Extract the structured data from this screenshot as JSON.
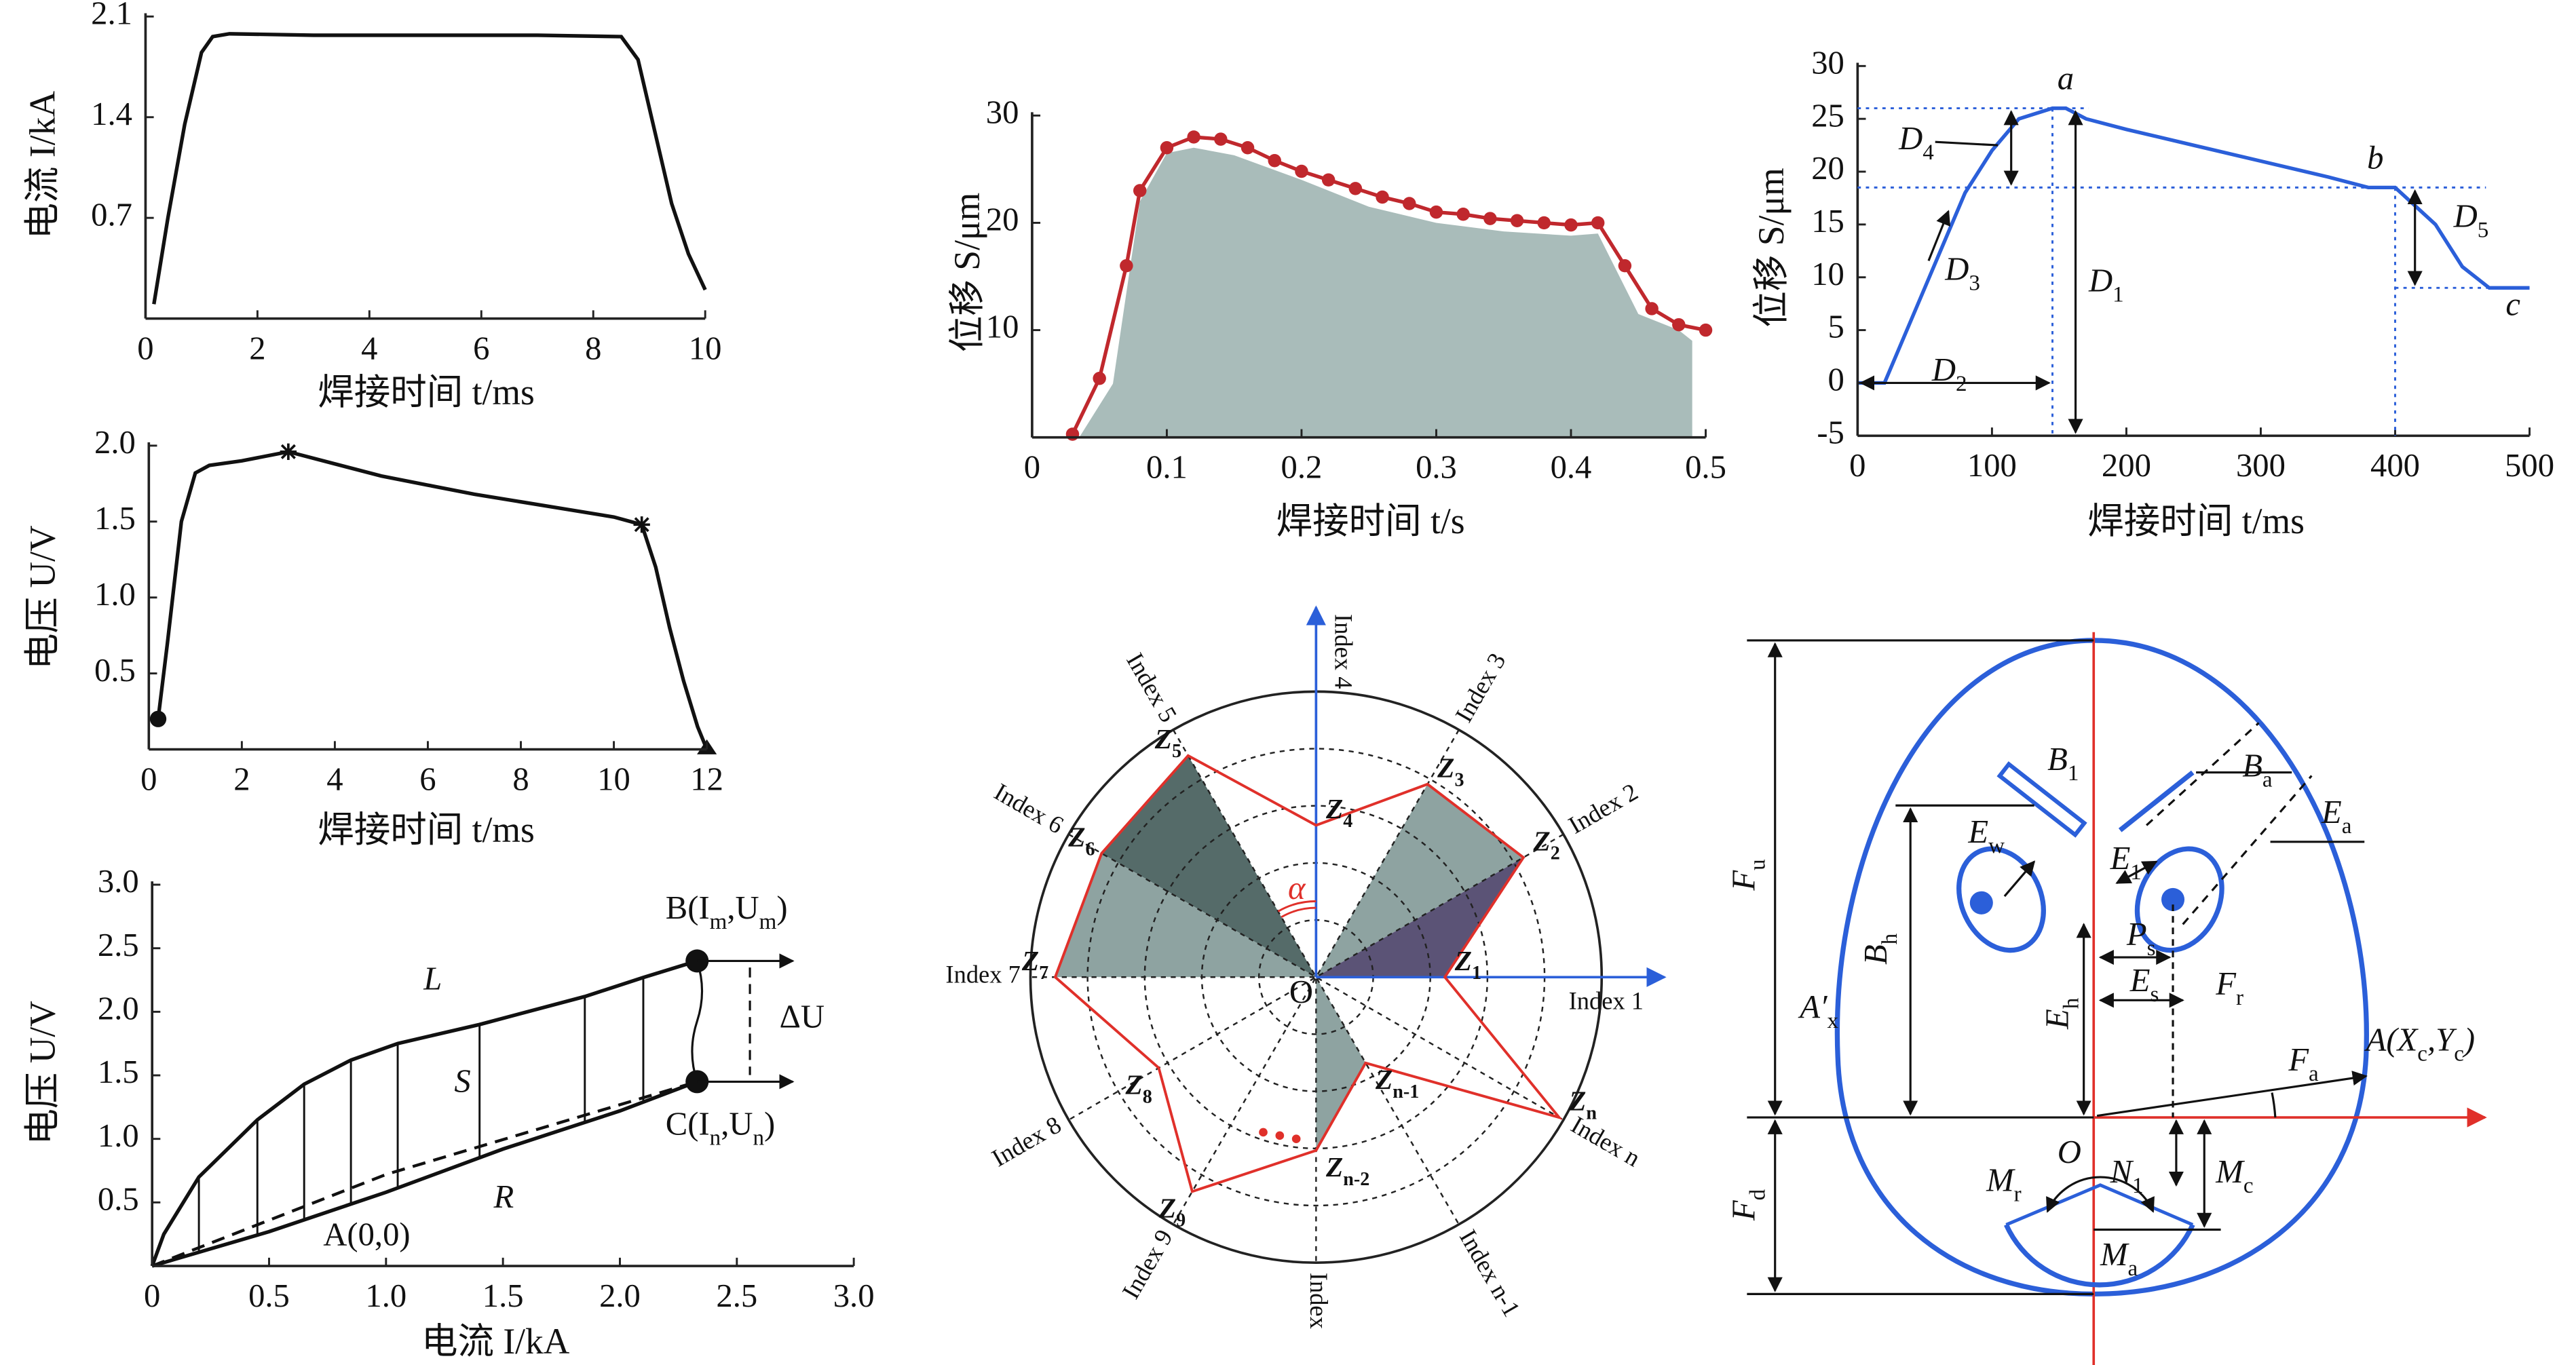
{
  "chart_data": [
    {
      "type": "line",
      "x_label": "焊接时间 t/ms",
      "y_label": "电流 I/kA",
      "xlim": [
        0,
        10
      ],
      "xticks": [
        0,
        2,
        4,
        6,
        8,
        10
      ],
      "ylim": [
        0,
        2.1
      ],
      "yticks": [
        0.7,
        1.4,
        2.1
      ],
      "series": [
        {
          "color": "#111",
          "x": [
            0.15,
            0.4,
            0.7,
            1.0,
            1.2,
            1.5,
            3,
            5,
            7,
            8.5,
            8.8,
            9.1,
            9.4,
            9.7,
            10
          ],
          "values": [
            0.1,
            0.7,
            1.35,
            1.85,
            1.96,
            1.98,
            1.97,
            1.97,
            1.97,
            1.96,
            1.8,
            1.3,
            0.8,
            0.45,
            0.2
          ]
        }
      ]
    },
    {
      "type": "line",
      "x_label": "焊接时间 t/ms",
      "y_label": "电压 U/V",
      "xlim": [
        0,
        12
      ],
      "xticks": [
        0,
        2,
        4,
        6,
        8,
        10,
        12
      ],
      "ylim": [
        0,
        2.0
      ],
      "yticks": [
        0.5,
        {
          "value": 1,
          "label": "1.0"
        },
        1.5,
        {
          "value": 2,
          "label": "2.0"
        }
      ],
      "series": [
        {
          "color": "#111",
          "x": [
            0.2,
            0.4,
            0.7,
            1.0,
            1.3,
            2,
            3,
            4,
            5,
            6,
            7,
            8,
            9,
            10,
            10.6,
            10.9,
            11.2,
            11.5,
            11.8,
            12
          ],
          "values": [
            0.2,
            0.7,
            1.5,
            1.82,
            1.87,
            1.9,
            1.96,
            1.88,
            1.8,
            1.74,
            1.68,
            1.63,
            1.58,
            1.53,
            1.48,
            1.2,
            0.8,
            0.45,
            0.15,
            0
          ],
          "markers": [
            "dot",
            null,
            null,
            null,
            null,
            null,
            "star",
            null,
            null,
            null,
            null,
            null,
            null,
            null,
            "star",
            null,
            null,
            null,
            null,
            "triangle"
          ]
        }
      ]
    },
    {
      "type": "line",
      "x_label": "电流 I/kA",
      "y_label": "电压 U/V",
      "xlim": [
        0,
        3
      ],
      "xticks": [
        0,
        0.5,
        {
          "value": 1,
          "label": "1.0"
        },
        1.5,
        {
          "value": 2,
          "label": "2.0"
        },
        2.5,
        {
          "value": 3,
          "label": "3.0"
        }
      ],
      "ylim": [
        0,
        3
      ],
      "yticks": [
        0.5,
        {
          "value": 1,
          "label": "1.0"
        },
        1.5,
        {
          "value": 2,
          "label": "2.0"
        },
        2.5,
        {
          "value": 3,
          "label": "3.0"
        }
      ],
      "series": [
        {
          "name": "L",
          "color": "#111",
          "x": [
            0,
            0.05,
            0.2,
            0.45,
            0.65,
            0.85,
            1.05,
            1.4,
            1.85,
            2.1,
            2.33
          ],
          "values": [
            0,
            0.25,
            0.7,
            1.15,
            1.43,
            1.62,
            1.75,
            1.9,
            2.12,
            2.27,
            2.4
          ]
        },
        {
          "name": "R",
          "color": "#111",
          "x": [
            0,
            0.5,
            1.0,
            1.5,
            2.0,
            2.33
          ],
          "values": [
            0,
            0.27,
            0.58,
            0.92,
            1.22,
            1.45
          ]
        },
        {
          "color": "#111",
          "style": "dashed",
          "x": [
            0,
            1.0,
            2.33
          ],
          "values": [
            0,
            0.72,
            1.45
          ]
        }
      ],
      "annotations": [
        [
          "S"
        ],
        [
          "A(0,0)"
        ],
        [
          "B(I",
          {
            "sub": "m"
          },
          ",U",
          {
            "sub": "m"
          },
          ")"
        ],
        [
          "C(I",
          {
            "sub": "n"
          },
          ",U",
          {
            "sub": "n"
          },
          ")"
        ],
        [
          "ΔU"
        ]
      ]
    },
    {
      "type": "line",
      "x_label": "焊接时间 t/s",
      "y_label": "位移 S/μm",
      "xlim": [
        0,
        0.5
      ],
      "xticks": [
        0,
        0.1,
        0.2,
        0.3,
        0.4,
        0.5
      ],
      "ylim": [
        0,
        30
      ],
      "yticks": [
        10,
        20,
        30
      ],
      "series": [
        {
          "color": "#a9bcba",
          "style": "area",
          "x": [
            0.035,
            0.06,
            0.08,
            0.1,
            0.12,
            0.15,
            0.2,
            0.25,
            0.3,
            0.35,
            0.4,
            0.42,
            0.45,
            0.48,
            0.49
          ],
          "values": [
            0,
            5,
            22,
            26.5,
            27,
            26.3,
            24,
            21.5,
            20,
            19.2,
            18.8,
            19,
            11.5,
            10,
            9
          ]
        },
        {
          "color": "#c0282d",
          "marker": "dot",
          "x": [
            0.03,
            0.05,
            0.07,
            0.08,
            0.1,
            0.12,
            0.14,
            0.16,
            0.18,
            0.2,
            0.22,
            0.24,
            0.26,
            0.28,
            0.3,
            0.32,
            0.34,
            0.36,
            0.38,
            0.4,
            0.42,
            0.44,
            0.46,
            0.48,
            0.5
          ],
          "values": [
            0.3,
            5.5,
            16,
            23,
            27,
            28,
            27.8,
            27,
            25.8,
            24.8,
            24,
            23.2,
            22.4,
            21.8,
            21,
            20.8,
            20.4,
            20.2,
            20,
            19.8,
            20,
            16,
            12,
            10.5,
            10
          ]
        }
      ]
    },
    {
      "type": "line",
      "x_label": "焊接时间 t/ms",
      "y_label": "位移 S/μm",
      "xlim": [
        0,
        500
      ],
      "xticks": [
        0,
        100,
        200,
        300,
        400,
        500
      ],
      "ylim": [
        -5,
        30
      ],
      "yticks": [
        -5,
        0,
        5,
        10,
        15,
        20,
        25,
        30
      ],
      "series": [
        {
          "color": "#2b5fd9",
          "x": [
            0,
            20,
            40,
            60,
            80,
            100,
            120,
            145,
            155,
            170,
            200,
            250,
            300,
            350,
            380,
            400,
            430,
            450,
            470,
            500
          ],
          "values": [
            0,
            0,
            6,
            12,
            18,
            22,
            25,
            26,
            26,
            25,
            24,
            22.5,
            21,
            19.5,
            18.5,
            18.5,
            15,
            11,
            9,
            9
          ]
        }
      ],
      "annotations": [
        [
          "a"
        ],
        [
          "b"
        ],
        [
          "c"
        ],
        [
          "D",
          {
            "sub": "1"
          }
        ],
        [
          "D",
          {
            "sub": "2"
          }
        ],
        [
          "D",
          {
            "sub": "3"
          }
        ],
        [
          "D",
          {
            "sub": "4"
          }
        ],
        [
          "D",
          {
            "sub": "5"
          }
        ]
      ]
    }
  ],
  "radar": {
    "indices": [
      "Index 1",
      "Index 2",
      "Index 3",
      "Index 4",
      "Index 5",
      "Index 6",
      "Index 7",
      "Index 8",
      "Index 9",
      "Index",
      "Index n-1",
      "Index n"
    ],
    "points": [
      [
        "Z",
        {
          "sub": "1"
        }
      ],
      [
        "Z",
        {
          "sub": "2"
        }
      ],
      [
        "Z",
        {
          "sub": "3"
        }
      ],
      [
        "Z",
        {
          "sub": "4"
        }
      ],
      [
        "Z",
        {
          "sub": "5"
        }
      ],
      [
        "Z",
        {
          "sub": "6"
        }
      ],
      [
        "Z",
        {
          "sub": "7"
        }
      ],
      [
        "Z",
        {
          "sub": "8"
        }
      ],
      [
        "Z",
        {
          "sub": "9"
        }
      ],
      [
        "Z",
        {
          "sub": "n-2"
        }
      ],
      [
        "Z",
        {
          "sub": "n-1"
        }
      ],
      [
        "Z",
        {
          "sub": "n"
        }
      ]
    ],
    "angle": "α",
    "origin": "O"
  },
  "face": {
    "labels": [
      [
        "F",
        {
          "sub": "u"
        }
      ],
      [
        "F",
        {
          "sub": "d"
        }
      ],
      [
        "A′",
        {
          "sub": "x"
        }
      ],
      [
        "B",
        {
          "sub": "h"
        }
      ],
      [
        "B",
        {
          "sub": "1"
        }
      ],
      [
        "B",
        {
          "sub": "a"
        }
      ],
      [
        "E",
        {
          "sub": "a"
        }
      ],
      [
        "E",
        {
          "sub": "w"
        }
      ],
      [
        "E",
        {
          "sub": "1"
        }
      ],
      [
        "P",
        {
          "sub": "s"
        }
      ],
      [
        "E",
        {
          "sub": "h"
        }
      ],
      [
        "E",
        {
          "sub": "s"
        }
      ],
      [
        "F",
        {
          "sub": "r"
        }
      ],
      [
        "F",
        {
          "sub": "a"
        }
      ],
      [
        "A(X",
        {
          "sub": "c"
        },
        ",Y",
        {
          "sub": "c"
        },
        ")"
      ],
      [
        "O"
      ],
      [
        "N",
        {
          "sub": "1"
        }
      ],
      [
        "M",
        {
          "sub": "c"
        }
      ],
      [
        "M",
        {
          "sub": "r"
        }
      ],
      [
        "M",
        {
          "sub": "a"
        }
      ]
    ]
  }
}
